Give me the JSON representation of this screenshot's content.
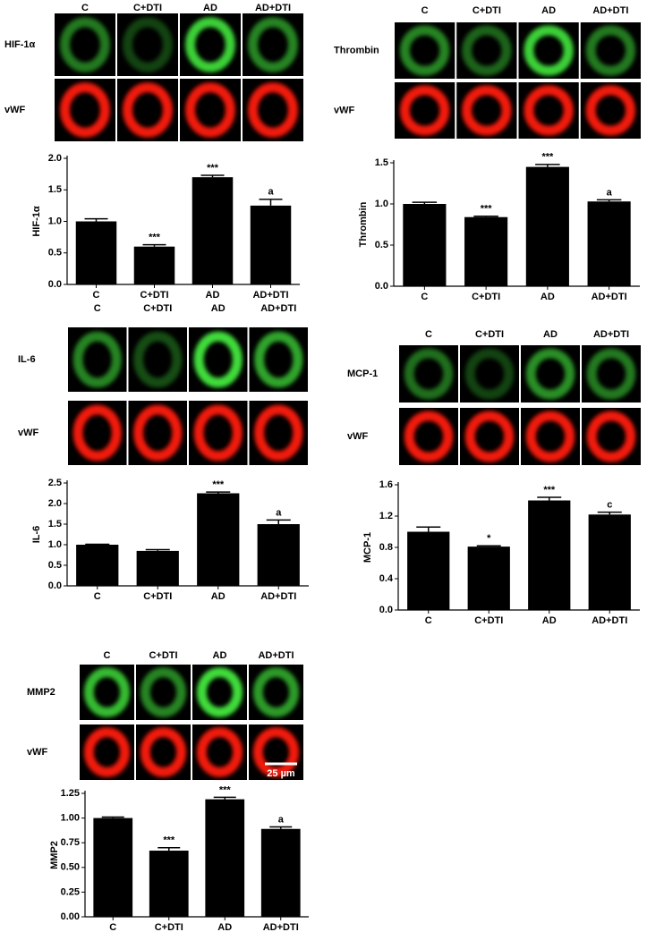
{
  "chart_data": [
    {
      "type": "bar",
      "y_label": "HIF-1α",
      "image_columns": [
        "C",
        "C+DTI",
        "AD",
        "AD+DTI"
      ],
      "image_rows": [
        "HIF-1α",
        "vWF"
      ],
      "categories": [
        "C",
        "C+DTI",
        "AD",
        "AD+DTI"
      ],
      "values": [
        1.0,
        0.6,
        1.7,
        1.25
      ],
      "errors": [
        0.04,
        0.03,
        0.03,
        0.1
      ],
      "annotations": [
        null,
        "***",
        "***",
        "a"
      ],
      "color": "#000000",
      "ylim": [
        0,
        2.0
      ],
      "yticks": [
        {
          "value": 0,
          "label": "0.0"
        },
        0.5,
        {
          "value": 1,
          "label": "1.0"
        },
        1.5,
        {
          "value": 2,
          "label": "2.0"
        }
      ]
    },
    {
      "type": "bar",
      "y_label": "Thrombin",
      "image_columns": [
        "C",
        "C+DTI",
        "AD",
        "AD+DTI"
      ],
      "image_rows": [
        "Thrombin",
        "vWF"
      ],
      "categories": [
        "C",
        "C+DTI",
        "AD",
        "AD+DTI"
      ],
      "values": [
        1.0,
        0.84,
        1.45,
        1.03
      ],
      "errors": [
        0.02,
        0.01,
        0.03,
        0.02
      ],
      "annotations": [
        null,
        "***",
        "***",
        "a"
      ],
      "color": "#000000",
      "ylim": [
        0,
        1.5
      ],
      "yticks": [
        {
          "value": 0,
          "label": "0.0"
        },
        0.5,
        {
          "value": 1,
          "label": "1.0"
        },
        1.5
      ]
    },
    {
      "type": "bar",
      "y_label": "IL-6",
      "image_columns": [
        "C",
        "C+DTI",
        "AD",
        "AD+DTI"
      ],
      "image_rows": [
        "IL-6",
        "vWF"
      ],
      "categories": [
        "C",
        "C+DTI",
        "AD",
        "AD+DTI"
      ],
      "values": [
        1.0,
        0.85,
        2.25,
        1.5
      ],
      "errors": [
        0.01,
        0.03,
        0.03,
        0.1
      ],
      "annotations": [
        null,
        null,
        "***",
        "a"
      ],
      "color": "#000000",
      "ylim": [
        0,
        2.5
      ],
      "yticks": [
        {
          "value": 0,
          "label": "0.0"
        },
        0.5,
        {
          "value": 1,
          "label": "1.0"
        },
        1.5,
        {
          "value": 2,
          "label": "2.0"
        },
        2.5
      ]
    },
    {
      "type": "bar",
      "y_label": "MCP-1",
      "image_columns": [
        "C",
        "C+DTI",
        "AD",
        "AD+DTI"
      ],
      "image_rows": [
        "MCP-1",
        "vWF"
      ],
      "categories": [
        "C",
        "C+DTI",
        "AD",
        "AD+DTI"
      ],
      "values": [
        1.0,
        0.81,
        1.4,
        1.22
      ],
      "errors": [
        0.06,
        0.01,
        0.04,
        0.03
      ],
      "annotations": [
        null,
        "*",
        "***",
        "c"
      ],
      "color": "#000000",
      "ylim": [
        0,
        1.6
      ],
      "yticks": [
        {
          "value": 0,
          "label": "0.0"
        },
        0.4,
        0.8,
        1.2,
        1.6
      ]
    },
    {
      "type": "bar",
      "y_label": "MMP2",
      "image_columns": [
        "C",
        "C+DTI",
        "AD",
        "AD+DTI"
      ],
      "image_rows": [
        "MMP2",
        "vWF"
      ],
      "scale_bar": "25 µm",
      "categories": [
        "C",
        "C+DTI",
        "AD",
        "AD+DTI"
      ],
      "values": [
        1.0,
        0.67,
        1.19,
        0.89
      ],
      "errors": [
        0.01,
        0.03,
        0.02,
        0.02
      ],
      "annotations": [
        null,
        "***",
        "***",
        "a"
      ],
      "color": "#000000",
      "ylim": [
        0,
        1.25
      ],
      "yticks": [
        {
          "value": 0,
          "label": "0.00"
        },
        0.25,
        {
          "value": 0.5,
          "label": "0.50"
        },
        0.75,
        {
          "value": 1,
          "label": "1.00"
        },
        1.25
      ]
    }
  ]
}
